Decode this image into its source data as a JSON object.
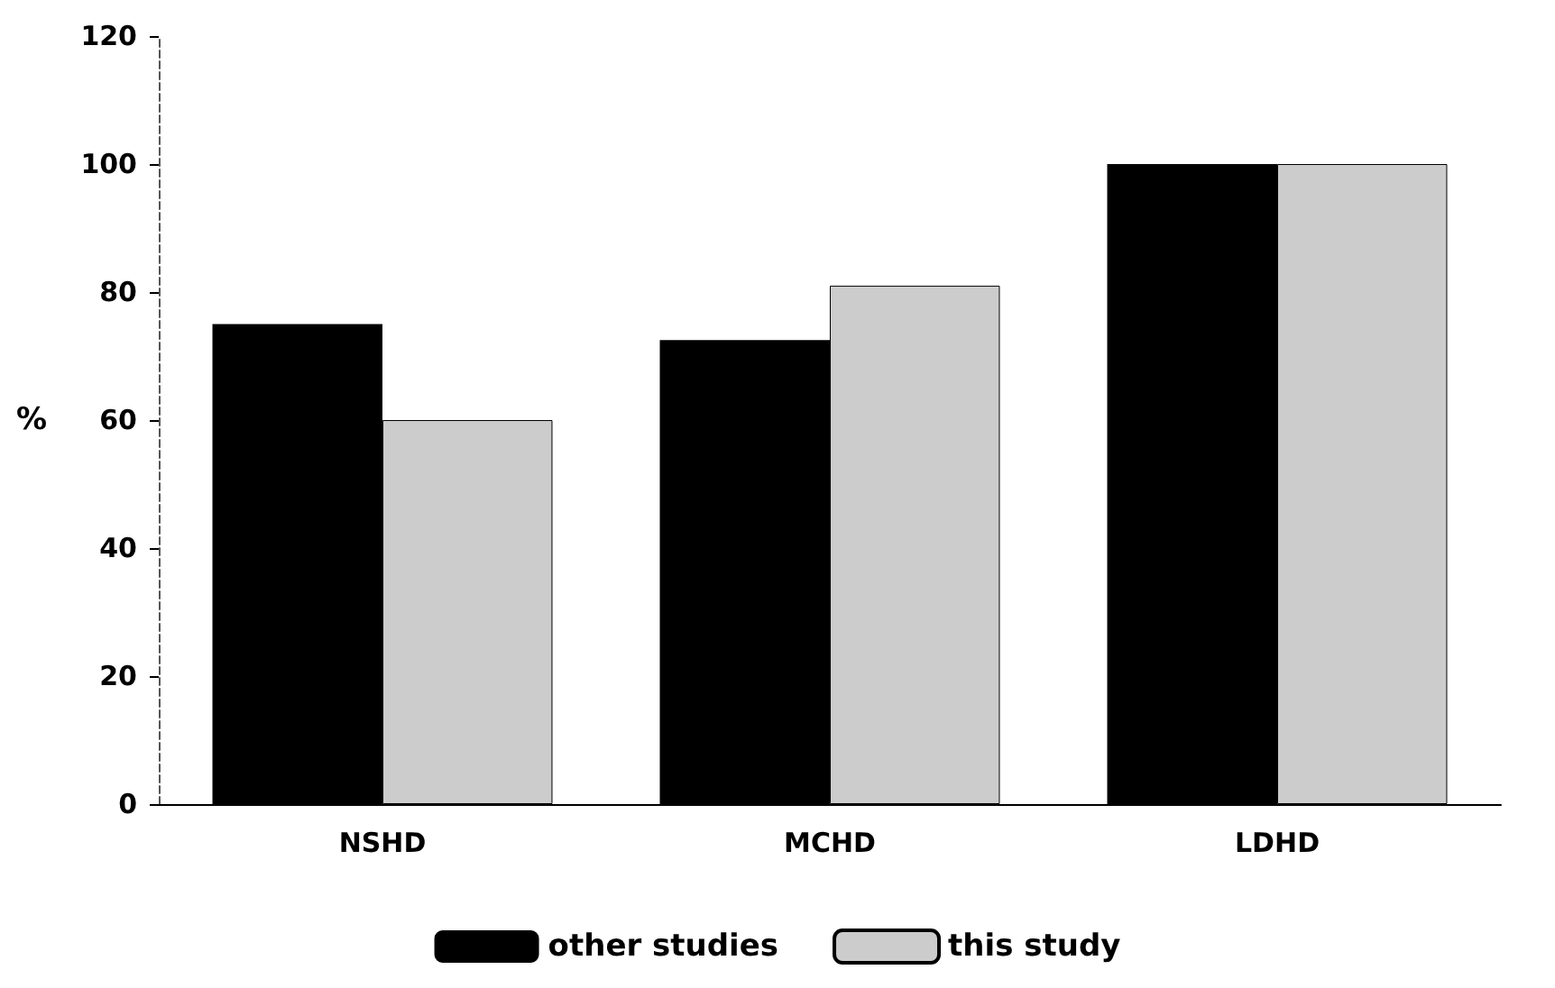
{
  "chart_data": {
    "type": "bar",
    "ylabel": "%",
    "categories": [
      "NSHD",
      "MCHD",
      "LDHD"
    ],
    "series": [
      {
        "name": "other studies",
        "color": "#000000",
        "values": [
          75,
          72.5,
          100
        ]
      },
      {
        "name": "this study",
        "color": "#cccccc",
        "values": [
          60,
          81,
          100
        ]
      }
    ],
    "ylim": [
      0,
      120
    ],
    "yticks": [
      0,
      20,
      40,
      60,
      80,
      100,
      120
    ],
    "grid": false,
    "legend": "bottom"
  }
}
